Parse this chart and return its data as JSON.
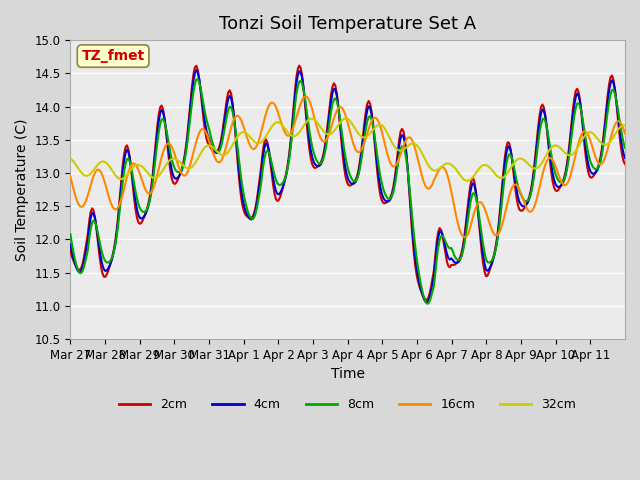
{
  "title": "Tonzi Soil Temperature Set A",
  "xlabel": "Time",
  "ylabel": "Soil Temperature (C)",
  "ylim": [
    10.5,
    15.0
  ],
  "xtick_labels": [
    "Mar 27",
    "Mar 28",
    "Mar 29",
    "Mar 30",
    "Mar 31",
    "Apr 1",
    "Apr 2",
    "Apr 3",
    "Apr 4",
    "Apr 5",
    "Apr 6",
    "Apr 7",
    "Apr 8",
    "Apr 9",
    "Apr 10",
    "Apr 11"
  ],
  "ytick_values": [
    10.5,
    11.0,
    11.5,
    12.0,
    12.5,
    13.0,
    13.5,
    14.0,
    14.5,
    15.0
  ],
  "series_colors": {
    "2cm": "#cc0000",
    "4cm": "#0000cc",
    "8cm": "#00aa00",
    "16cm": "#ff8800",
    "32cm": "#cccc00"
  },
  "series_lw": 1.5,
  "annotation_text": "TZ_fmet",
  "annotation_color": "#cc0000",
  "annotation_bg": "#ffffcc",
  "fig_bg": "#d8d8d8",
  "plot_bg": "#ebebeb",
  "grid_color": "#ffffff",
  "title_fontsize": 13,
  "axis_fontsize": 10,
  "tick_fontsize": 8.5,
  "legend_fontsize": 9
}
